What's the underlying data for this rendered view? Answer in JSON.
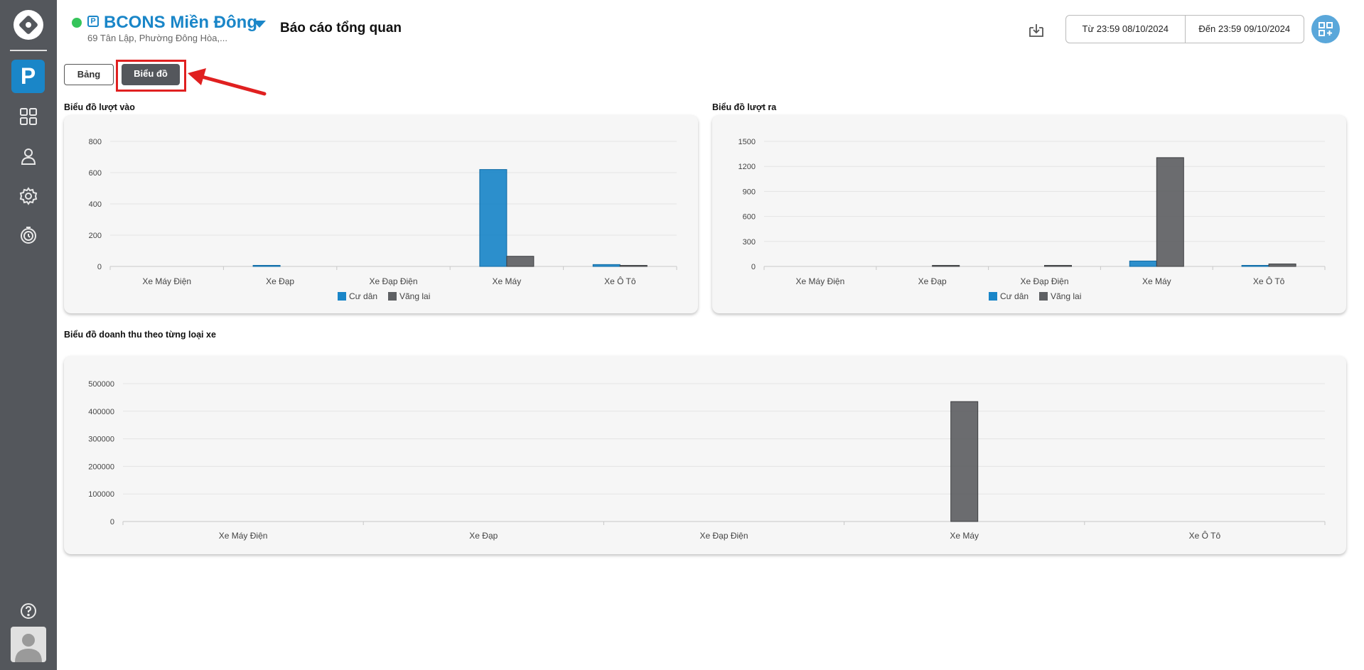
{
  "site": {
    "name": "BCONS Miền Đông",
    "address": "69 Tân Lập, Phường Đông Hòa,...",
    "park_glyph": "P"
  },
  "page": {
    "title": "Báo cáo tổng quan"
  },
  "date_range": {
    "from": "Từ 23:59 08/10/2024",
    "to": "Đến 23:59 09/10/2024"
  },
  "tabs": {
    "table": "Bảng",
    "chart": "Biểu đồ"
  },
  "sidebar": {
    "active_glyph": "P",
    "icons": [
      "dashboard-icon",
      "user-icon",
      "gear-icon",
      "history-icon",
      "help-icon"
    ]
  },
  "colors": {
    "accent": "#1a86c8",
    "resident": "#1a86c8",
    "visitor": "#5e6063",
    "sidebar": "#54575c",
    "highlight": "#e02020"
  },
  "chart_data": [
    {
      "title": "Biểu đồ lượt vào",
      "type": "bar",
      "categories": [
        "Xe Máy Điện",
        "Xe Đạp",
        "Xe Đạp Điện",
        "Xe Máy",
        "Xe Ô Tô"
      ],
      "series": [
        {
          "name": "Cư dân",
          "values": [
            0,
            6,
            0,
            620,
            12
          ]
        },
        {
          "name": "Vãng lai",
          "values": [
            0,
            0,
            0,
            65,
            4
          ]
        }
      ],
      "yticks": [
        0,
        200,
        400,
        600,
        800
      ],
      "ylim": [
        0,
        800
      ],
      "grid": true,
      "legend": "bottom"
    },
    {
      "title": "Biểu đồ lượt ra",
      "type": "bar",
      "categories": [
        "Xe Máy Điện",
        "Xe Đạp",
        "Xe Đạp Điện",
        "Xe Máy",
        "Xe Ô Tô"
      ],
      "series": [
        {
          "name": "Cư dân",
          "values": [
            0,
            0,
            0,
            65,
            6
          ]
        },
        {
          "name": "Vãng lai",
          "values": [
            0,
            8,
            10,
            1305,
            30
          ]
        }
      ],
      "yticks": [
        0,
        300,
        600,
        900,
        1200,
        1500
      ],
      "ylim": [
        0,
        1500
      ],
      "grid": true,
      "legend": "bottom"
    },
    {
      "title": "Biểu đồ doanh thu theo từng loại xe",
      "type": "bar",
      "categories": [
        "Xe Máy Điện",
        "Xe Đạp",
        "Xe Đạp Điện",
        "Xe Máy",
        "Xe Ô Tô"
      ],
      "series": [
        {
          "name": "",
          "values": [
            0,
            0,
            0,
            435000,
            0
          ]
        }
      ],
      "yticks": [
        0,
        100000,
        200000,
        300000,
        400000,
        500000
      ],
      "ylim": [
        0,
        500000
      ],
      "grid": true,
      "legend": "none"
    }
  ]
}
